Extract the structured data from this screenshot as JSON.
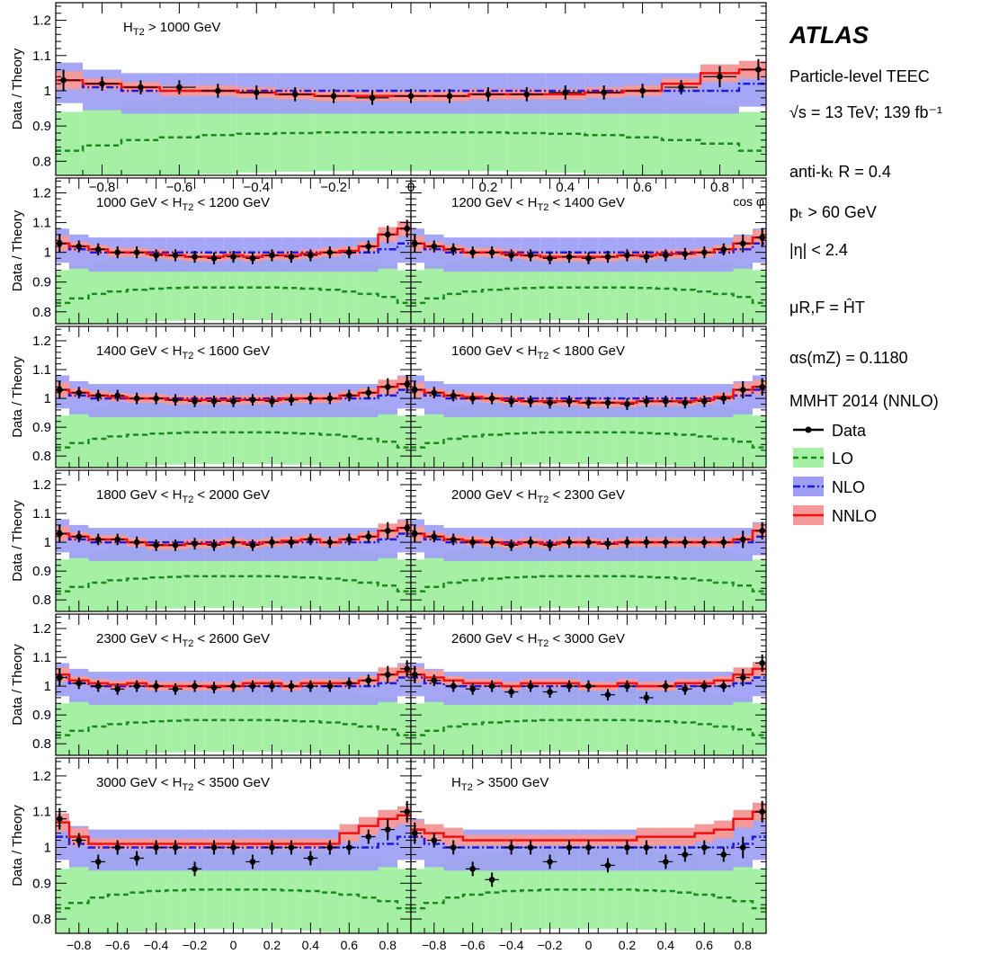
{
  "legend": {
    "experiment": "ATLAS",
    "lines": [
      "Particle-level TEEC",
      "√s = 13 TeV; 139 fb⁻¹",
      "anti-kₜ R = 0.4",
      "pₜ > 60 GeV",
      "|η| < 2.4",
      "μR,F = ĤT",
      "αs(mZ) = 0.1180",
      "MMHT 2014 (NNLO)"
    ],
    "entries": [
      {
        "label": "Data",
        "style": "marker-line",
        "color": "#000000"
      },
      {
        "label": "LO",
        "style": "dashed-band",
        "color": "#1a8a1a",
        "fill": "#a6f0a6"
      },
      {
        "label": "NLO",
        "style": "dashdot-band",
        "color": "#1c1cd4",
        "fill": "#9e9ef5"
      },
      {
        "label": "NNLO",
        "style": "solid-band",
        "color": "#ee1111",
        "fill": "#f49a9a"
      }
    ]
  },
  "chart_data": {
    "type": "line",
    "ylabel": "Data / Theory",
    "xlabel": "cos φ",
    "xlim": [
      -0.92,
      0.92
    ],
    "ylim": [
      0.76,
      1.25
    ],
    "xticks": [
      "−0.8",
      "−0.6",
      "−0.4",
      "−0.2",
      "0",
      "0.2",
      "0.4",
      "0.6",
      "0.8"
    ],
    "yticks": [
      "0.8",
      "0.9",
      "1",
      "1.1",
      "1.2"
    ],
    "x": [
      -0.9,
      -0.8,
      -0.7,
      -0.6,
      -0.5,
      -0.4,
      -0.3,
      -0.2,
      -0.1,
      0.0,
      0.1,
      0.2,
      0.3,
      0.4,
      0.5,
      0.6,
      0.7,
      0.8,
      0.9
    ],
    "colors": {
      "data": "#000000",
      "lo": "#1a8a1a",
      "lo_band": "#a6f0a6",
      "nlo": "#1c1cd4",
      "nlo_band": "#9e9ef5",
      "nnlo": "#ee1111",
      "nnlo_band": "#f49a9a"
    },
    "panels": [
      {
        "label": "H_T2 > 1000 GeV",
        "data": [
          1.03,
          1.02,
          1.01,
          1.01,
          1.0,
          0.995,
          0.99,
          0.985,
          0.98,
          0.985,
          0.985,
          0.99,
          0.99,
          0.995,
          0.995,
          1.0,
          1.01,
          1.04,
          1.06
        ],
        "nnlo": [
          1.03,
          1.02,
          1.01,
          1.0,
          1.0,
          0.995,
          0.99,
          0.985,
          0.985,
          0.985,
          0.985,
          0.99,
          0.99,
          0.99,
          0.995,
          1.0,
          1.02,
          1.05,
          1.06
        ],
        "nlo": [
          1.03,
          1.01,
          1.0,
          1.0,
          1.0,
          1.0,
          1.0,
          1.0,
          1.0,
          1.0,
          1.0,
          1.0,
          1.0,
          1.0,
          1.0,
          1.0,
          1.0,
          1.0,
          1.02
        ],
        "lo": [
          0.83,
          0.845,
          0.86,
          0.868,
          0.874,
          0.878,
          0.88,
          0.882,
          0.882,
          0.882,
          0.882,
          0.882,
          0.88,
          0.878,
          0.874,
          0.868,
          0.86,
          0.85,
          0.83
        ]
      },
      {
        "label": "1000 GeV < H_T2 < 1200 GeV",
        "data": [
          1.03,
          1.02,
          1.01,
          1.0,
          1.0,
          0.99,
          0.99,
          0.985,
          0.98,
          0.985,
          0.98,
          0.99,
          0.985,
          0.99,
          1.0,
          1.0,
          1.02,
          1.06,
          1.08
        ],
        "nnlo": [
          1.03,
          1.02,
          1.01,
          1.0,
          1.0,
          0.995,
          0.99,
          0.985,
          0.985,
          0.99,
          0.985,
          0.99,
          0.99,
          0.995,
          1.0,
          1.005,
          1.02,
          1.06,
          1.08
        ],
        "nlo": [
          1.03,
          1.01,
          1.0,
          1.0,
          1.0,
          1.0,
          1.0,
          1.0,
          1.0,
          1.0,
          1.0,
          1.0,
          1.0,
          1.0,
          1.0,
          1.0,
          1.0,
          1.01,
          1.03
        ],
        "lo": [
          0.83,
          0.845,
          0.86,
          0.868,
          0.874,
          0.878,
          0.88,
          0.882,
          0.882,
          0.882,
          0.882,
          0.882,
          0.88,
          0.878,
          0.874,
          0.868,
          0.86,
          0.85,
          0.83
        ]
      },
      {
        "label": "1200 GeV < H_T2 < 1400 GeV",
        "data": [
          1.03,
          1.02,
          1.01,
          1.0,
          1.0,
          0.99,
          0.99,
          0.98,
          0.985,
          0.98,
          0.985,
          0.99,
          0.985,
          0.99,
          0.995,
          1.0,
          1.01,
          1.03,
          1.05
        ],
        "nnlo": [
          1.03,
          1.02,
          1.01,
          1.0,
          1.0,
          0.995,
          0.99,
          0.985,
          0.985,
          0.985,
          0.985,
          0.99,
          0.99,
          0.995,
          0.995,
          1.0,
          1.01,
          1.03,
          1.05
        ],
        "nlo": [
          1.03,
          1.01,
          1.0,
          1.0,
          1.0,
          1.0,
          1.0,
          1.0,
          1.0,
          1.0,
          1.0,
          1.0,
          1.0,
          1.0,
          1.0,
          1.0,
          1.0,
          1.01,
          1.03
        ],
        "lo": [
          0.83,
          0.845,
          0.86,
          0.868,
          0.874,
          0.878,
          0.88,
          0.882,
          0.882,
          0.882,
          0.882,
          0.882,
          0.88,
          0.878,
          0.874,
          0.868,
          0.86,
          0.85,
          0.83
        ]
      },
      {
        "label": "1400 GeV < H_T2 < 1600 GeV",
        "data": [
          1.03,
          1.02,
          1.01,
          1.01,
          1.0,
          1.0,
          0.995,
          0.99,
          0.99,
          0.99,
          0.995,
          0.99,
          0.995,
          1.0,
          1.0,
          1.01,
          1.02,
          1.04,
          1.05
        ],
        "nnlo": [
          1.03,
          1.02,
          1.01,
          1.005,
          1.0,
          1.0,
          0.995,
          0.995,
          0.995,
          0.995,
          0.995,
          0.995,
          1.0,
          1.0,
          1.0,
          1.01,
          1.02,
          1.04,
          1.05
        ],
        "nlo": [
          1.03,
          1.01,
          1.0,
          1.0,
          1.0,
          1.0,
          1.0,
          1.0,
          1.0,
          1.0,
          1.0,
          1.0,
          1.0,
          1.0,
          1.0,
          1.0,
          1.0,
          1.01,
          1.03
        ],
        "lo": [
          0.83,
          0.845,
          0.86,
          0.868,
          0.874,
          0.878,
          0.88,
          0.882,
          0.882,
          0.882,
          0.882,
          0.882,
          0.88,
          0.878,
          0.874,
          0.868,
          0.86,
          0.85,
          0.83
        ]
      },
      {
        "label": "1600 GeV < H_T2 < 1800 GeV",
        "data": [
          1.03,
          1.02,
          1.01,
          1.0,
          1.0,
          0.99,
          0.99,
          0.985,
          0.99,
          0.985,
          0.985,
          0.98,
          0.99,
          0.99,
          0.985,
          0.99,
          1.0,
          1.03,
          1.04
        ],
        "nnlo": [
          1.03,
          1.02,
          1.01,
          1.005,
          1.0,
          0.995,
          0.99,
          0.99,
          0.99,
          0.985,
          0.985,
          0.985,
          0.99,
          0.99,
          0.99,
          0.995,
          1.005,
          1.03,
          1.04
        ],
        "nlo": [
          1.03,
          1.01,
          1.0,
          1.0,
          1.0,
          1.0,
          1.0,
          1.0,
          1.0,
          1.0,
          1.0,
          1.0,
          1.0,
          1.0,
          1.0,
          1.0,
          1.0,
          1.01,
          1.03
        ],
        "lo": [
          0.83,
          0.845,
          0.86,
          0.868,
          0.874,
          0.878,
          0.88,
          0.882,
          0.882,
          0.882,
          0.882,
          0.882,
          0.88,
          0.878,
          0.874,
          0.868,
          0.86,
          0.85,
          0.83
        ]
      },
      {
        "label": "1800 GeV < H_T2 < 2000 GeV",
        "data": [
          1.03,
          1.02,
          1.01,
          1.01,
          1.0,
          0.99,
          0.99,
          0.995,
          0.99,
          1.0,
          0.99,
          1.0,
          1.0,
          1.01,
          1.0,
          1.01,
          1.02,
          1.04,
          1.05
        ],
        "nnlo": [
          1.03,
          1.02,
          1.01,
          1.01,
          1.0,
          0.99,
          0.99,
          0.995,
          0.995,
          1.0,
          0.995,
          1.0,
          1.005,
          1.01,
          1.0,
          1.01,
          1.02,
          1.04,
          1.05
        ],
        "nlo": [
          1.03,
          1.01,
          1.0,
          1.0,
          1.0,
          1.0,
          1.0,
          1.0,
          1.0,
          1.0,
          1.0,
          1.0,
          1.0,
          1.0,
          1.0,
          1.0,
          1.0,
          1.01,
          1.03
        ],
        "lo": [
          0.83,
          0.845,
          0.86,
          0.868,
          0.874,
          0.878,
          0.88,
          0.882,
          0.882,
          0.882,
          0.882,
          0.882,
          0.88,
          0.878,
          0.874,
          0.868,
          0.86,
          0.85,
          0.83
        ]
      },
      {
        "label": "2000 GeV < H_T2 < 2300 GeV",
        "data": [
          1.03,
          1.02,
          1.01,
          1.0,
          1.0,
          0.99,
          1.0,
          0.99,
          1.0,
          1.0,
          0.995,
          1.0,
          1.0,
          1.0,
          1.0,
          1.0,
          1.0,
          1.01,
          1.04
        ],
        "nnlo": [
          1.03,
          1.02,
          1.01,
          1.005,
          1.0,
          0.995,
          1.0,
          0.995,
          1.0,
          1.0,
          0.995,
          1.0,
          1.0,
          1.0,
          1.0,
          1.0,
          1.0,
          1.01,
          1.04
        ],
        "nlo": [
          1.03,
          1.01,
          1.0,
          1.0,
          1.0,
          1.0,
          1.0,
          1.0,
          1.0,
          1.0,
          1.0,
          1.0,
          1.0,
          1.0,
          1.0,
          1.0,
          1.0,
          1.0,
          1.02
        ],
        "lo": [
          0.83,
          0.845,
          0.86,
          0.868,
          0.874,
          0.878,
          0.88,
          0.882,
          0.882,
          0.882,
          0.882,
          0.882,
          0.88,
          0.878,
          0.874,
          0.868,
          0.86,
          0.85,
          0.83
        ]
      },
      {
        "label": "2300 GeV < H_T2 < 2600 GeV",
        "data": [
          1.03,
          1.01,
          1.0,
          0.99,
          1.0,
          1.0,
          0.99,
          1.0,
          0.995,
          1.0,
          1.0,
          1.0,
          1.0,
          1.0,
          1.0,
          1.01,
          1.02,
          1.04,
          1.06
        ],
        "nnlo": [
          1.04,
          1.02,
          1.01,
          1.005,
          1.01,
          1.0,
          1.0,
          1.0,
          1.0,
          1.0,
          1.01,
          1.01,
          1.0,
          1.01,
          1.01,
          1.01,
          1.02,
          1.04,
          1.05
        ],
        "nlo": [
          1.03,
          1.01,
          1.0,
          1.0,
          1.0,
          1.0,
          1.0,
          1.0,
          1.0,
          1.0,
          1.0,
          1.0,
          1.0,
          1.0,
          1.0,
          1.0,
          1.0,
          1.01,
          1.03
        ],
        "lo": [
          0.83,
          0.845,
          0.86,
          0.868,
          0.874,
          0.878,
          0.88,
          0.882,
          0.882,
          0.882,
          0.882,
          0.882,
          0.88,
          0.878,
          0.874,
          0.868,
          0.86,
          0.85,
          0.83
        ]
      },
      {
        "label": "2600 GeV < H_T2 < 3000 GeV",
        "data": [
          1.04,
          1.02,
          1.0,
          0.99,
          1.0,
          0.98,
          1.0,
          0.98,
          1.0,
          1.0,
          0.97,
          1.0,
          0.96,
          1.0,
          0.99,
          1.0,
          1.0,
          1.03,
          1.08
        ],
        "nnlo": [
          1.04,
          1.03,
          1.02,
          1.01,
          1.01,
          1.0,
          1.01,
          1.01,
          1.01,
          1.0,
          1.0,
          1.01,
          1.0,
          1.0,
          1.01,
          1.01,
          1.02,
          1.04,
          1.06
        ],
        "nlo": [
          1.03,
          1.01,
          1.0,
          1.0,
          1.0,
          1.0,
          1.0,
          1.0,
          1.0,
          1.0,
          1.0,
          1.0,
          1.0,
          1.0,
          1.0,
          1.0,
          1.0,
          1.01,
          1.03
        ],
        "lo": [
          0.83,
          0.845,
          0.86,
          0.868,
          0.874,
          0.878,
          0.88,
          0.882,
          0.882,
          0.882,
          0.882,
          0.882,
          0.88,
          0.878,
          0.874,
          0.868,
          0.86,
          0.85,
          0.83
        ]
      },
      {
        "label": "3000 GeV < H_T2 < 3500 GeV",
        "data": [
          1.08,
          1.02,
          0.96,
          1.0,
          0.97,
          1.0,
          1.0,
          0.94,
          1.0,
          1.0,
          0.96,
          1.0,
          1.0,
          0.97,
          1.0,
          1.0,
          1.03,
          1.05,
          1.1
        ],
        "nnlo": [
          1.07,
          1.03,
          1.01,
          1.01,
          1.01,
          1.01,
          1.01,
          1.01,
          1.01,
          1.01,
          1.01,
          1.01,
          1.01,
          1.01,
          1.01,
          1.04,
          1.06,
          1.08,
          1.09
        ],
        "nlo": [
          1.03,
          1.01,
          1.0,
          1.0,
          1.0,
          1.0,
          1.0,
          1.0,
          1.0,
          1.0,
          1.0,
          1.0,
          1.0,
          1.0,
          1.0,
          1.0,
          1.0,
          1.01,
          1.03
        ],
        "lo": [
          0.83,
          0.845,
          0.86,
          0.868,
          0.874,
          0.878,
          0.88,
          0.882,
          0.882,
          0.882,
          0.882,
          0.882,
          0.88,
          0.878,
          0.874,
          0.868,
          0.86,
          0.85,
          0.83
        ]
      },
      {
        "label": "H_T2 > 3500 GeV",
        "data": [
          1.04,
          1.02,
          1.0,
          0.94,
          0.91,
          1.0,
          1.0,
          0.96,
          1.0,
          1.0,
          0.95,
          1.0,
          1.0,
          0.96,
          0.98,
          1.0,
          0.98,
          1.0,
          1.1
        ],
        "nnlo": [
          1.05,
          1.04,
          1.03,
          1.02,
          1.02,
          1.02,
          1.02,
          1.02,
          1.02,
          1.02,
          1.02,
          1.02,
          1.03,
          1.03,
          1.03,
          1.04,
          1.05,
          1.08,
          1.1
        ],
        "nlo": [
          1.03,
          1.01,
          1.0,
          1.0,
          1.0,
          1.0,
          1.0,
          1.0,
          1.0,
          1.0,
          1.0,
          1.0,
          1.0,
          1.0,
          1.0,
          1.0,
          1.0,
          1.01,
          1.03
        ],
        "lo": [
          0.83,
          0.845,
          0.86,
          0.868,
          0.874,
          0.878,
          0.88,
          0.882,
          0.882,
          0.882,
          0.882,
          0.882,
          0.88,
          0.878,
          0.874,
          0.868,
          0.86,
          0.85,
          0.83
        ]
      }
    ]
  }
}
